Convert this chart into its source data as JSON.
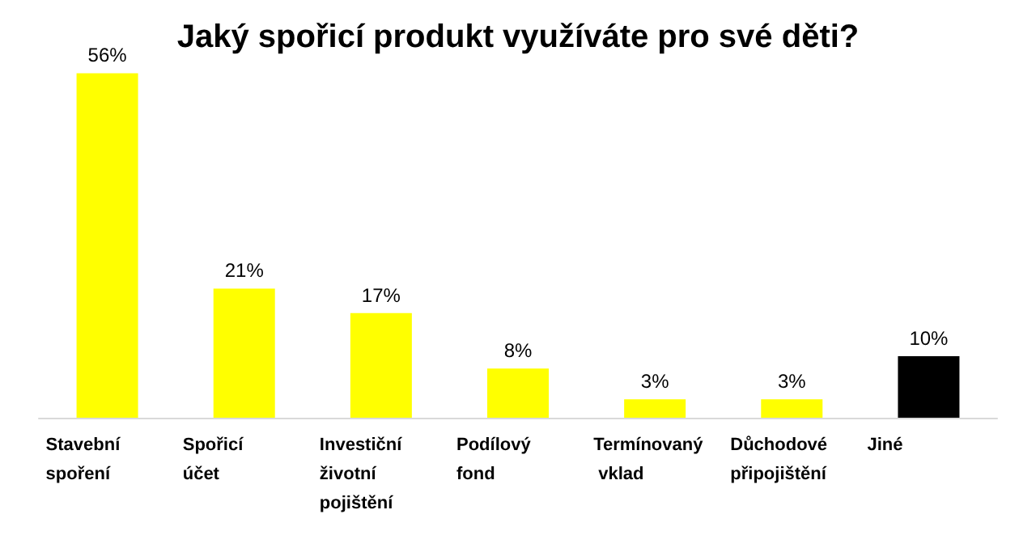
{
  "chart_data": {
    "type": "bar",
    "title": "Jaký spořicí produkt využíváte pro své děti?",
    "categories": [
      "Stavební spoření",
      "Spořicí účet",
      "Investiční životní pojištění",
      "Podílový fond",
      "Termínovaný vklad",
      "Důchodové připojištění",
      "Jiné"
    ],
    "values": [
      56,
      21,
      17,
      8,
      3,
      3,
      10
    ],
    "colors": [
      "#ffff00",
      "#ffff00",
      "#ffff00",
      "#ffff00",
      "#ffff00",
      "#ffff00",
      "#000000"
    ],
    "value_labels": [
      "56%",
      "21%",
      "17%",
      "8%",
      "3%",
      "3%",
      "10%"
    ],
    "tick_labels": "x"
  }
}
